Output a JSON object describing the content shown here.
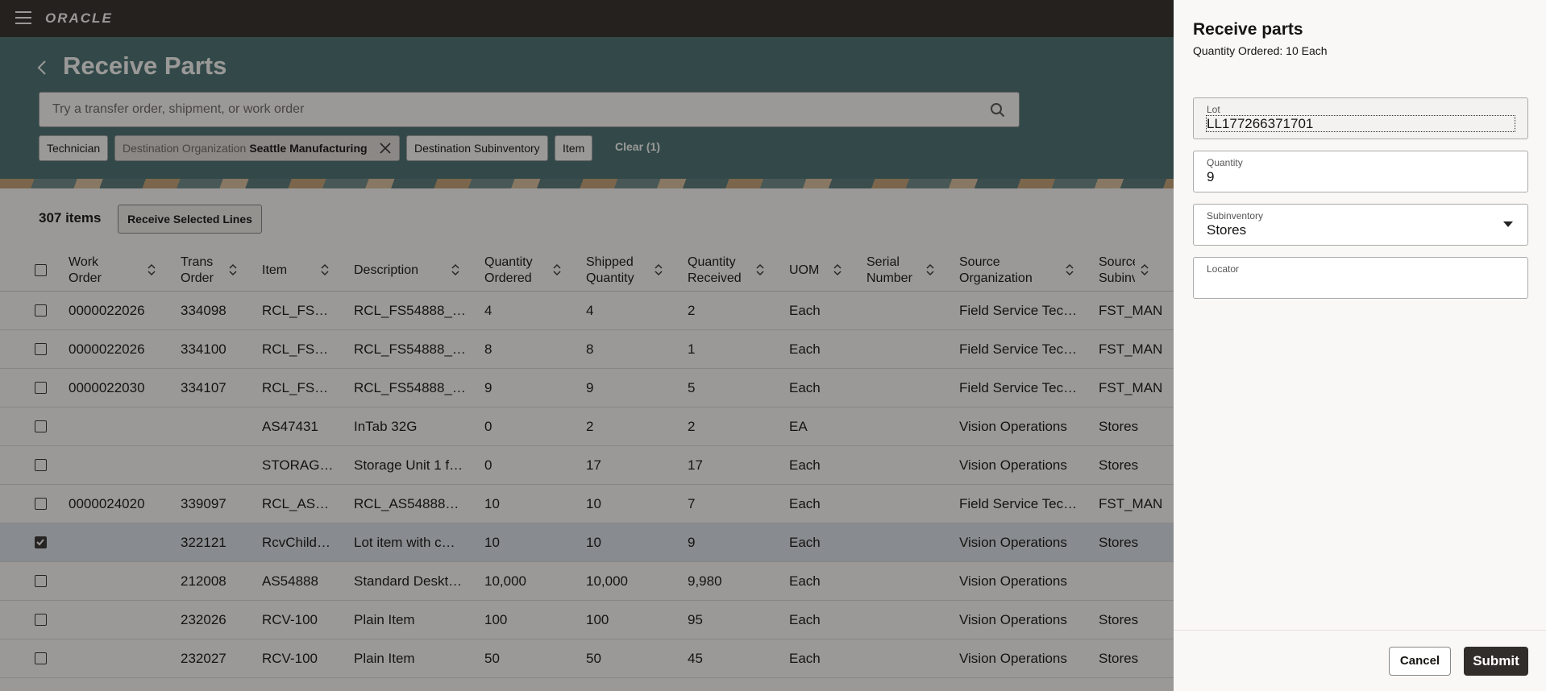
{
  "header": {
    "brand": "ORACLE"
  },
  "page": {
    "title": "Receive Parts",
    "search_placeholder": "Try a transfer order, shipment, or work order",
    "filters": [
      {
        "label": "Technician"
      },
      {
        "label": "Destination Organization",
        "value": "Seattle Manufacturing"
      },
      {
        "label": "Destination Subinventory"
      },
      {
        "label": "Item"
      }
    ],
    "clear": "Clear (1)"
  },
  "toolbar": {
    "count": "307 items",
    "button": "Receive Selected Lines"
  },
  "table": {
    "columns": [
      [
        "Work",
        "Order"
      ],
      [
        "Trans",
        "Order"
      ],
      [
        "Item"
      ],
      [
        "Description"
      ],
      [
        "Quantity",
        "Ordered"
      ],
      [
        "Shipped",
        "Quantity"
      ],
      [
        "Quantity",
        "Received"
      ],
      [
        "UOM"
      ],
      [
        "Serial",
        "Number"
      ],
      [
        "Source",
        "Organization"
      ],
      [
        "Source",
        "Subinventory"
      ]
    ],
    "rows": [
      {
        "checked": false,
        "cells": [
          "0000022026",
          "334098",
          "RCL_FS…",
          "RCL_FS54888_…",
          "4",
          "4",
          "2",
          "Each",
          null,
          "Field Service Tec…",
          "FST_MAN"
        ]
      },
      {
        "checked": false,
        "cells": [
          "0000022026",
          "334100",
          "RCL_FS…",
          "RCL_FS54888_…",
          "8",
          "8",
          "1",
          "Each",
          null,
          "Field Service Tec…",
          "FST_MAN"
        ]
      },
      {
        "checked": false,
        "cells": [
          "0000022030",
          "334107",
          "RCL_FS…",
          "RCL_FS54888_…",
          "9",
          "9",
          "5",
          "Each",
          null,
          "Field Service Tec…",
          "FST_MAN"
        ]
      },
      {
        "checked": false,
        "cells": [
          null,
          null,
          "AS47431",
          "InTab 32G",
          "0",
          "2",
          "2",
          "EA",
          null,
          "Vision Operations",
          "Stores"
        ]
      },
      {
        "checked": false,
        "cells": [
          null,
          null,
          "STORAG…",
          "Storage Unit 1 f…",
          "0",
          "17",
          "17",
          "Each",
          null,
          "Vision Operations",
          "Stores"
        ]
      },
      {
        "checked": false,
        "cells": [
          "0000024020",
          "339097",
          "RCL_AS…",
          "RCL_AS54888…",
          "10",
          "10",
          "7",
          "Each",
          null,
          "Field Service Tec…",
          "FST_MAN"
        ]
      },
      {
        "checked": true,
        "cells": [
          null,
          "322121",
          "RcvChild…",
          "Lot item with c…",
          "10",
          "10",
          "9",
          "Each",
          null,
          "Vision Operations",
          "Stores"
        ]
      },
      {
        "checked": false,
        "cells": [
          null,
          "212008",
          "AS54888",
          "Standard Deskt…",
          "10,000",
          "10,000",
          "9,980",
          "Each",
          null,
          "Vision Operations",
          null
        ]
      },
      {
        "checked": false,
        "cells": [
          null,
          "232026",
          "RCV-100",
          "Plain Item",
          "100",
          "100",
          "95",
          "Each",
          null,
          "Vision Operations",
          "Stores"
        ]
      },
      {
        "checked": false,
        "cells": [
          null,
          "232027",
          "RCV-100",
          "Plain Item",
          "50",
          "50",
          "45",
          "Each",
          null,
          "Vision Operations",
          "Stores"
        ]
      }
    ]
  },
  "panel": {
    "title": "Receive parts",
    "subtitle": "Quantity Ordered: 10 Each",
    "fields": [
      {
        "label": "Lot",
        "value": "LL177266371701"
      },
      {
        "label": "Quantity",
        "value": "9"
      },
      {
        "label": "Subinventory",
        "value": "Stores"
      },
      {
        "label": "Locator"
      }
    ],
    "cancel": "Cancel",
    "submit": "Submit"
  }
}
